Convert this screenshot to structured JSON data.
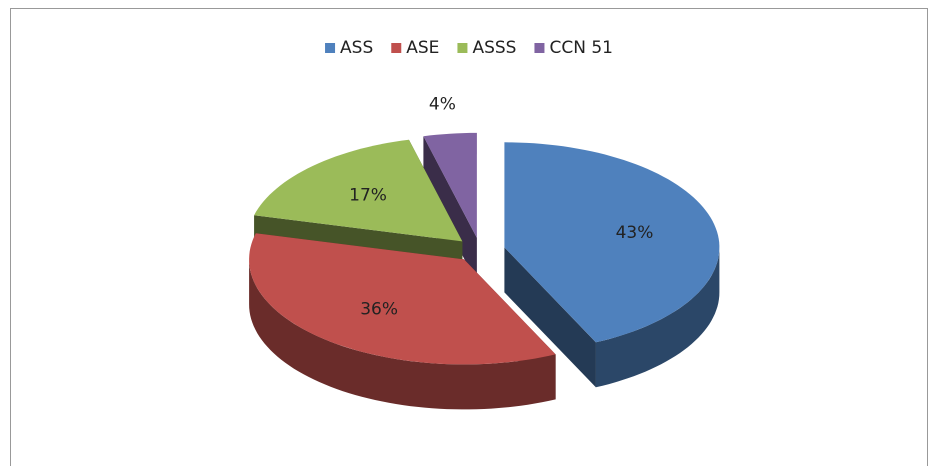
{
  "chart_data": {
    "type": "pie",
    "categories": [
      "ASS",
      "ASE",
      "ASSS",
      "CCN 51"
    ],
    "values": [
      43,
      36,
      17,
      4
    ],
    "value_labels": [
      "43%",
      "36%",
      "17%",
      "4%"
    ],
    "colors": [
      "#4f81bd",
      "#c0504d",
      "#9bbb59",
      "#8064a2"
    ],
    "legend": "top",
    "three_d": true,
    "exploded": true
  }
}
